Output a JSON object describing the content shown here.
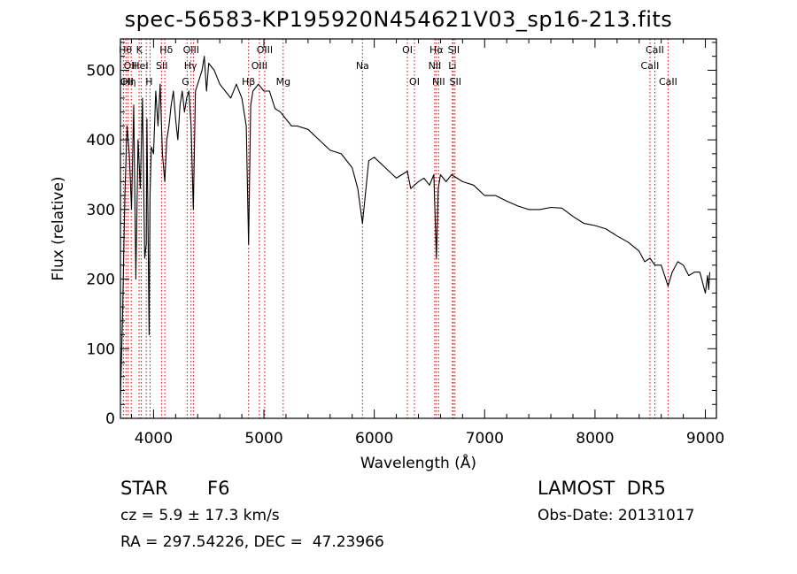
{
  "title": "spec-56583-KP195920N454621V03_sp16-213.fits",
  "footer": {
    "obj_class": "STAR",
    "subclass": "F6",
    "cz": "cz = 5.9 ± 17.3 km/s",
    "radec": "RA = 297.54226, DEC =  47.23966",
    "survey": "LAMOST  DR5",
    "obs_date": "Obs-Date: 20131017"
  },
  "colors": {
    "spectrum": "#000000",
    "lines": "#cc0000",
    "axis": "#000000"
  },
  "chart_data": {
    "type": "line",
    "title": "spec-56583-KP195920N454621V03_sp16-213.fits",
    "xlabel": "Wavelength (Å)",
    "ylabel": "Flux (relative)",
    "xlim": [
      3700,
      9100
    ],
    "ylim": [
      0,
      545
    ],
    "xticks": [
      4000,
      5000,
      6000,
      7000,
      8000,
      9000
    ],
    "yticks": [
      0,
      100,
      200,
      300,
      400,
      500
    ],
    "grid": false,
    "series": [
      {
        "x": [
          3700,
          3720,
          3740,
          3760,
          3780,
          3800,
          3820,
          3840,
          3860,
          3880,
          3900,
          3920,
          3934,
          3940,
          3960,
          3968,
          3980,
          4000,
          4020,
          4040,
          4060,
          4080,
          4102,
          4120,
          4140,
          4160,
          4180,
          4200,
          4220,
          4240,
          4260,
          4280,
          4300,
          4320,
          4340,
          4360,
          4380,
          4400,
          4420,
          4440,
          4460,
          4480,
          4500,
          4550,
          4600,
          4650,
          4700,
          4750,
          4800,
          4840,
          4861,
          4880,
          4900,
          4950,
          5000,
          5050,
          5100,
          5150,
          5200,
          5250,
          5300,
          5400,
          5500,
          5600,
          5700,
          5800,
          5850,
          5893,
          5950,
          6000,
          6100,
          6200,
          6300,
          6330,
          6400,
          6450,
          6500,
          6540,
          6563,
          6580,
          6600,
          6650,
          6700,
          6750,
          6800,
          6900,
          7000,
          7100,
          7200,
          7300,
          7400,
          7500,
          7600,
          7700,
          7800,
          7900,
          8000,
          8100,
          8200,
          8300,
          8400,
          8450,
          8498,
          8542,
          8600,
          8662,
          8700,
          8750,
          8800,
          8850,
          8900,
          8950,
          9000,
          9020,
          9030,
          9040
        ],
        "y": [
          30,
          150,
          320,
          420,
          380,
          300,
          450,
          200,
          400,
          330,
          460,
          230,
          250,
          430,
          120,
          320,
          390,
          380,
          470,
          420,
          480,
          380,
          340,
          400,
          420,
          450,
          470,
          430,
          400,
          450,
          470,
          440,
          460,
          470,
          420,
          300,
          470,
          480,
          490,
          500,
          520,
          470,
          510,
          500,
          480,
          470,
          460,
          480,
          460,
          420,
          250,
          450,
          470,
          480,
          470,
          470,
          445,
          440,
          430,
          420,
          420,
          415,
          400,
          385,
          380,
          360,
          330,
          280,
          370,
          375,
          360,
          345,
          355,
          330,
          340,
          345,
          335,
          350,
          230,
          330,
          350,
          340,
          350,
          345,
          340,
          335,
          320,
          320,
          312,
          305,
          300,
          300,
          303,
          302,
          290,
          280,
          277,
          272,
          262,
          253,
          240,
          225,
          230,
          220,
          220,
          190,
          210,
          225,
          220,
          205,
          210,
          210,
          180,
          205,
          185,
          210
        ]
      }
    ],
    "lines": [
      {
        "wl": 3727,
        "labels": [
          "OII"
        ]
      },
      {
        "wl": 3750,
        "labels": [
          "Hθ"
        ]
      },
      {
        "wl": 3770,
        "labels": [
          "Hη"
        ]
      },
      {
        "wl": 3798,
        "labels": [
          "Hθ"
        ]
      },
      {
        "wl": 3869,
        "labels": [
          "K"
        ]
      },
      {
        "wl": 3889,
        "labels": [
          "HeI"
        ]
      },
      {
        "wl": 3934,
        "labels": [
          "K"
        ]
      },
      {
        "wl": 3968,
        "labels": [
          "H"
        ]
      },
      {
        "wl": 4072,
        "labels": [
          "SII"
        ]
      },
      {
        "wl": 4102,
        "labels": [
          "Hδ"
        ]
      },
      {
        "wl": 4304,
        "labels": [
          "G"
        ]
      },
      {
        "wl": 4340,
        "labels": [
          "Hγ"
        ]
      },
      {
        "wl": 4363,
        "labels": [
          "OIII"
        ]
      },
      {
        "wl": 4861,
        "labels": [
          "Hβ"
        ]
      },
      {
        "wl": 4959,
        "labels": [
          "OIII"
        ]
      },
      {
        "wl": 5007,
        "labels": [
          "OIII"
        ]
      },
      {
        "wl": 5175,
        "labels": [
          "Mg"
        ]
      },
      {
        "wl": 5893,
        "labels": [
          "Na"
        ]
      },
      {
        "wl": 6300,
        "labels": [
          "OI"
        ]
      },
      {
        "wl": 6364,
        "labels": [
          "OI"
        ]
      },
      {
        "wl": 6548,
        "labels": [
          "NII"
        ]
      },
      {
        "wl": 6563,
        "labels": [
          "Hα"
        ]
      },
      {
        "wl": 6583,
        "labels": [
          "NII"
        ]
      },
      {
        "wl": 6708,
        "labels": [
          "Li"
        ]
      },
      {
        "wl": 6716,
        "labels": [
          "SII"
        ]
      },
      {
        "wl": 6731,
        "labels": [
          "SII"
        ]
      },
      {
        "wl": 8498,
        "labels": [
          "CaII"
        ]
      },
      {
        "wl": 8542,
        "labels": [
          "CaII"
        ]
      },
      {
        "wl": 8662,
        "labels": [
          "CaII"
        ]
      }
    ],
    "line_labels": [
      {
        "wl": 3745,
        "text": "Hθ",
        "row": 0
      },
      {
        "wl": 3790,
        "text": "OII",
        "row": 1
      },
      {
        "wl": 3760,
        "text": "OII",
        "row": 2
      },
      {
        "wl": 3780,
        "text": "Hη",
        "row": 2
      },
      {
        "wl": 3870,
        "text": "K",
        "row": 0
      },
      {
        "wl": 3880,
        "text": "HeI",
        "row": 1
      },
      {
        "wl": 3960,
        "text": "H",
        "row": 2
      },
      {
        "wl": 4075,
        "text": "SII",
        "row": 1
      },
      {
        "wl": 4115,
        "text": "Hδ",
        "row": 0
      },
      {
        "wl": 4290,
        "text": "G",
        "row": 2
      },
      {
        "wl": 4335,
        "text": "Hγ",
        "row": 1
      },
      {
        "wl": 4340,
        "text": "OIII",
        "row": 0
      },
      {
        "wl": 4861,
        "text": "Hβ",
        "row": 2
      },
      {
        "wl": 4959,
        "text": "OIII",
        "row": 1
      },
      {
        "wl": 5007,
        "text": "OIII",
        "row": 0
      },
      {
        "wl": 5175,
        "text": "Mg",
        "row": 2
      },
      {
        "wl": 5893,
        "text": "Na",
        "row": 1
      },
      {
        "wl": 6300,
        "text": "OI",
        "row": 0
      },
      {
        "wl": 6364,
        "text": "OI",
        "row": 2
      },
      {
        "wl": 6548,
        "text": "NII",
        "row": 1
      },
      {
        "wl": 6563,
        "text": "Hα",
        "row": 0
      },
      {
        "wl": 6583,
        "text": "NII",
        "row": 2
      },
      {
        "wl": 6708,
        "text": "Li",
        "row": 1
      },
      {
        "wl": 6720,
        "text": "SII",
        "row": 0
      },
      {
        "wl": 6735,
        "text": "SII",
        "row": 2
      },
      {
        "wl": 8498,
        "text": "CaII",
        "row": 1
      },
      {
        "wl": 8542,
        "text": "CaII",
        "row": 0
      },
      {
        "wl": 8662,
        "text": "CaII",
        "row": 2
      }
    ]
  }
}
